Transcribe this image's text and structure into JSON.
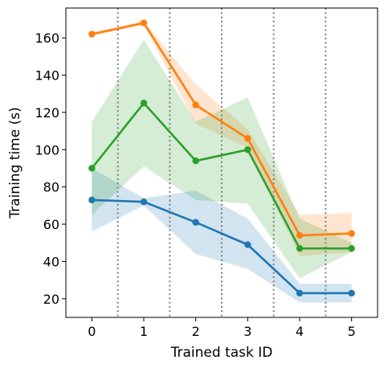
{
  "chart_data": {
    "type": "line",
    "xlabel": "Trained task ID",
    "ylabel": "Training time (s)",
    "x": [
      0,
      1,
      2,
      3,
      4,
      5
    ],
    "xlim": [
      -0.5,
      5.5
    ],
    "ylim": [
      10,
      176
    ],
    "xticks": [
      0,
      1,
      2,
      3,
      4,
      5
    ],
    "yticks": [
      20,
      40,
      60,
      80,
      100,
      120,
      140,
      160
    ],
    "vlines": [
      0.5,
      1.5,
      2.5,
      3.5,
      4.5
    ],
    "grid": false,
    "series": [
      {
        "color": "#1f77b4",
        "values": [
          73,
          72,
          61,
          49,
          23,
          23
        ],
        "lower": [
          56,
          70,
          44,
          36,
          18,
          18
        ],
        "upper": [
          90,
          74,
          78,
          63,
          28,
          28
        ]
      },
      {
        "color": "#ff7f0e",
        "values": [
          162,
          168,
          124,
          106,
          54,
          55
        ],
        "lower": [
          161,
          167,
          114,
          101,
          43,
          45
        ],
        "upper": [
          163,
          169,
          135,
          111,
          65,
          66
        ]
      },
      {
        "color": "#2ca02c",
        "values": [
          90,
          125,
          94,
          100,
          47,
          47
        ],
        "lower": [
          65,
          91,
          73,
          71,
          31,
          45
        ],
        "upper": [
          115,
          159,
          115,
          128,
          63,
          50
        ]
      }
    ]
  }
}
